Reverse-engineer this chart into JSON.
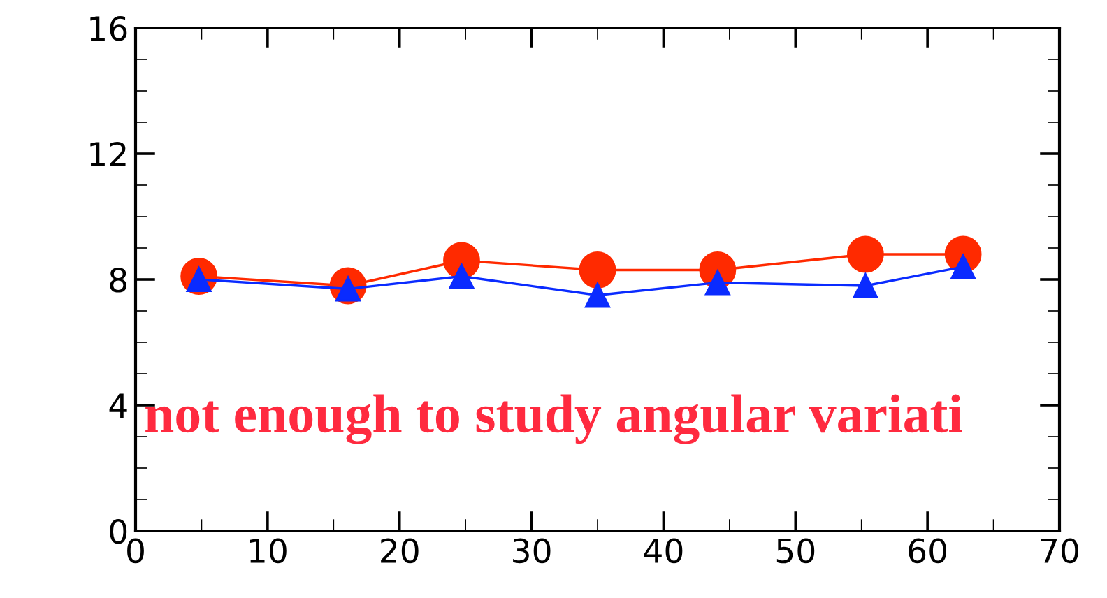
{
  "chart_data": {
    "type": "line",
    "x": [
      4.8,
      16.1,
      24.7,
      35.0,
      44.1,
      55.3,
      62.7
    ],
    "series": [
      {
        "color": "#ff2a00",
        "marker": "circle",
        "values": [
          8.1,
          7.8,
          8.6,
          8.3,
          8.3,
          8.8,
          8.8
        ]
      },
      {
        "color": "#0a2bff",
        "marker": "triangle",
        "values": [
          8.0,
          7.7,
          8.1,
          7.5,
          7.9,
          7.8,
          8.4
        ]
      }
    ],
    "xlim": [
      0,
      70
    ],
    "xticks": [
      0,
      10,
      20,
      30,
      40,
      50,
      60,
      70
    ],
    "ylim": [
      0,
      16
    ],
    "yticks": [
      0,
      4,
      8,
      12,
      16
    ],
    "grid": false,
    "annotations": [
      "not enough to study angular variati"
    ]
  }
}
